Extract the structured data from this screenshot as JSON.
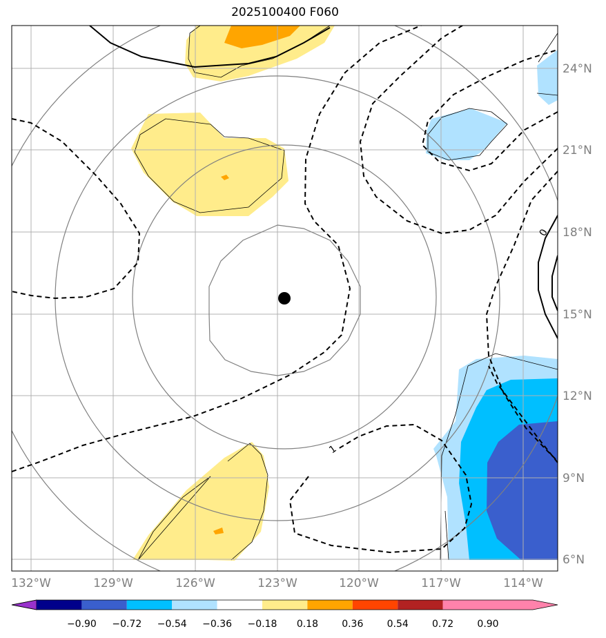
{
  "title": "2025100400 F060",
  "map": {
    "lon_labels": [
      "132°W",
      "129°W",
      "126°W",
      "123°W",
      "120°W",
      "117°W",
      "114°W"
    ],
    "lat_labels": [
      "24°N",
      "21°N",
      "18°N",
      "15°N",
      "12°N",
      "9°N",
      "6°N"
    ],
    "center_marker": {
      "lon": -122.8,
      "lat": 15.6
    },
    "contour_labels": [
      "1",
      "0"
    ]
  },
  "colorbar": {
    "tick_labels": [
      "−0.90",
      "−0.72",
      "−0.54",
      "−0.36",
      "−0.18",
      "0.18",
      "0.36",
      "0.54",
      "0.72",
      "0.90"
    ],
    "colors": [
      "#9932cc",
      "#00008b",
      "#3a5fcd",
      "#00bfff",
      "#b0e2ff",
      "#ffffff",
      "#ffec8b",
      "#ffa500",
      "#ff4500",
      "#b22222",
      "#ff82ab"
    ]
  },
  "colors": {
    "grid": "#b0b0b0",
    "ring": "#808080",
    "contour": "#000000",
    "tick_text": "#7f7f7f"
  }
}
